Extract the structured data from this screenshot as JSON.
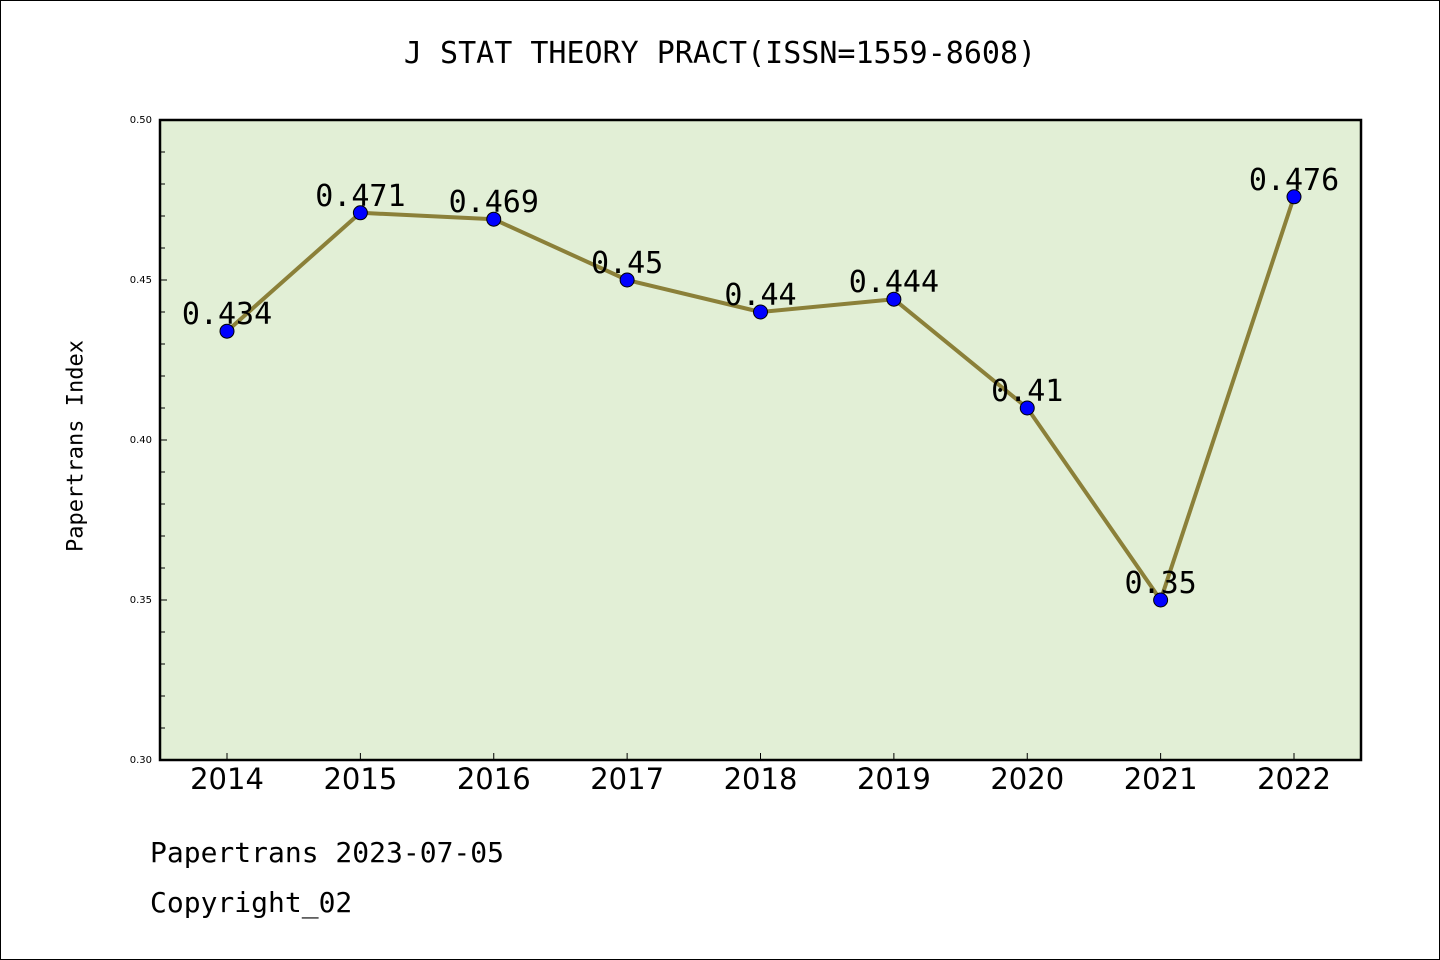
{
  "chart_data": {
    "type": "line",
    "title": "J STAT THEORY PRACT(ISSN=1559-8608)",
    "xlabel": "",
    "ylabel": "Papertrans Index",
    "categories": [
      "2014",
      "2015",
      "2016",
      "2017",
      "2018",
      "2019",
      "2020",
      "2021",
      "2022"
    ],
    "series": [
      {
        "values": [
          0.434,
          0.471,
          0.469,
          0.45,
          0.44,
          0.444,
          0.41,
          0.35,
          0.476
        ],
        "data_labels": [
          "0.434",
          "0.471",
          "0.469",
          "0.45",
          "0.44",
          "0.444",
          "0.41",
          "0.35",
          "0.476"
        ]
      }
    ],
    "ylim": [
      0.3,
      0.5
    ],
    "yticks": [
      "0.30",
      "0.35",
      "0.40",
      "0.45",
      "0.50"
    ],
    "grid": false,
    "colors": {
      "plot_background": "#e2efd6",
      "line": "#8b8039",
      "marker": "#0000ff"
    }
  },
  "footer": {
    "line1": "Papertrans 2023-07-05",
    "line2": "Copyright_02"
  }
}
